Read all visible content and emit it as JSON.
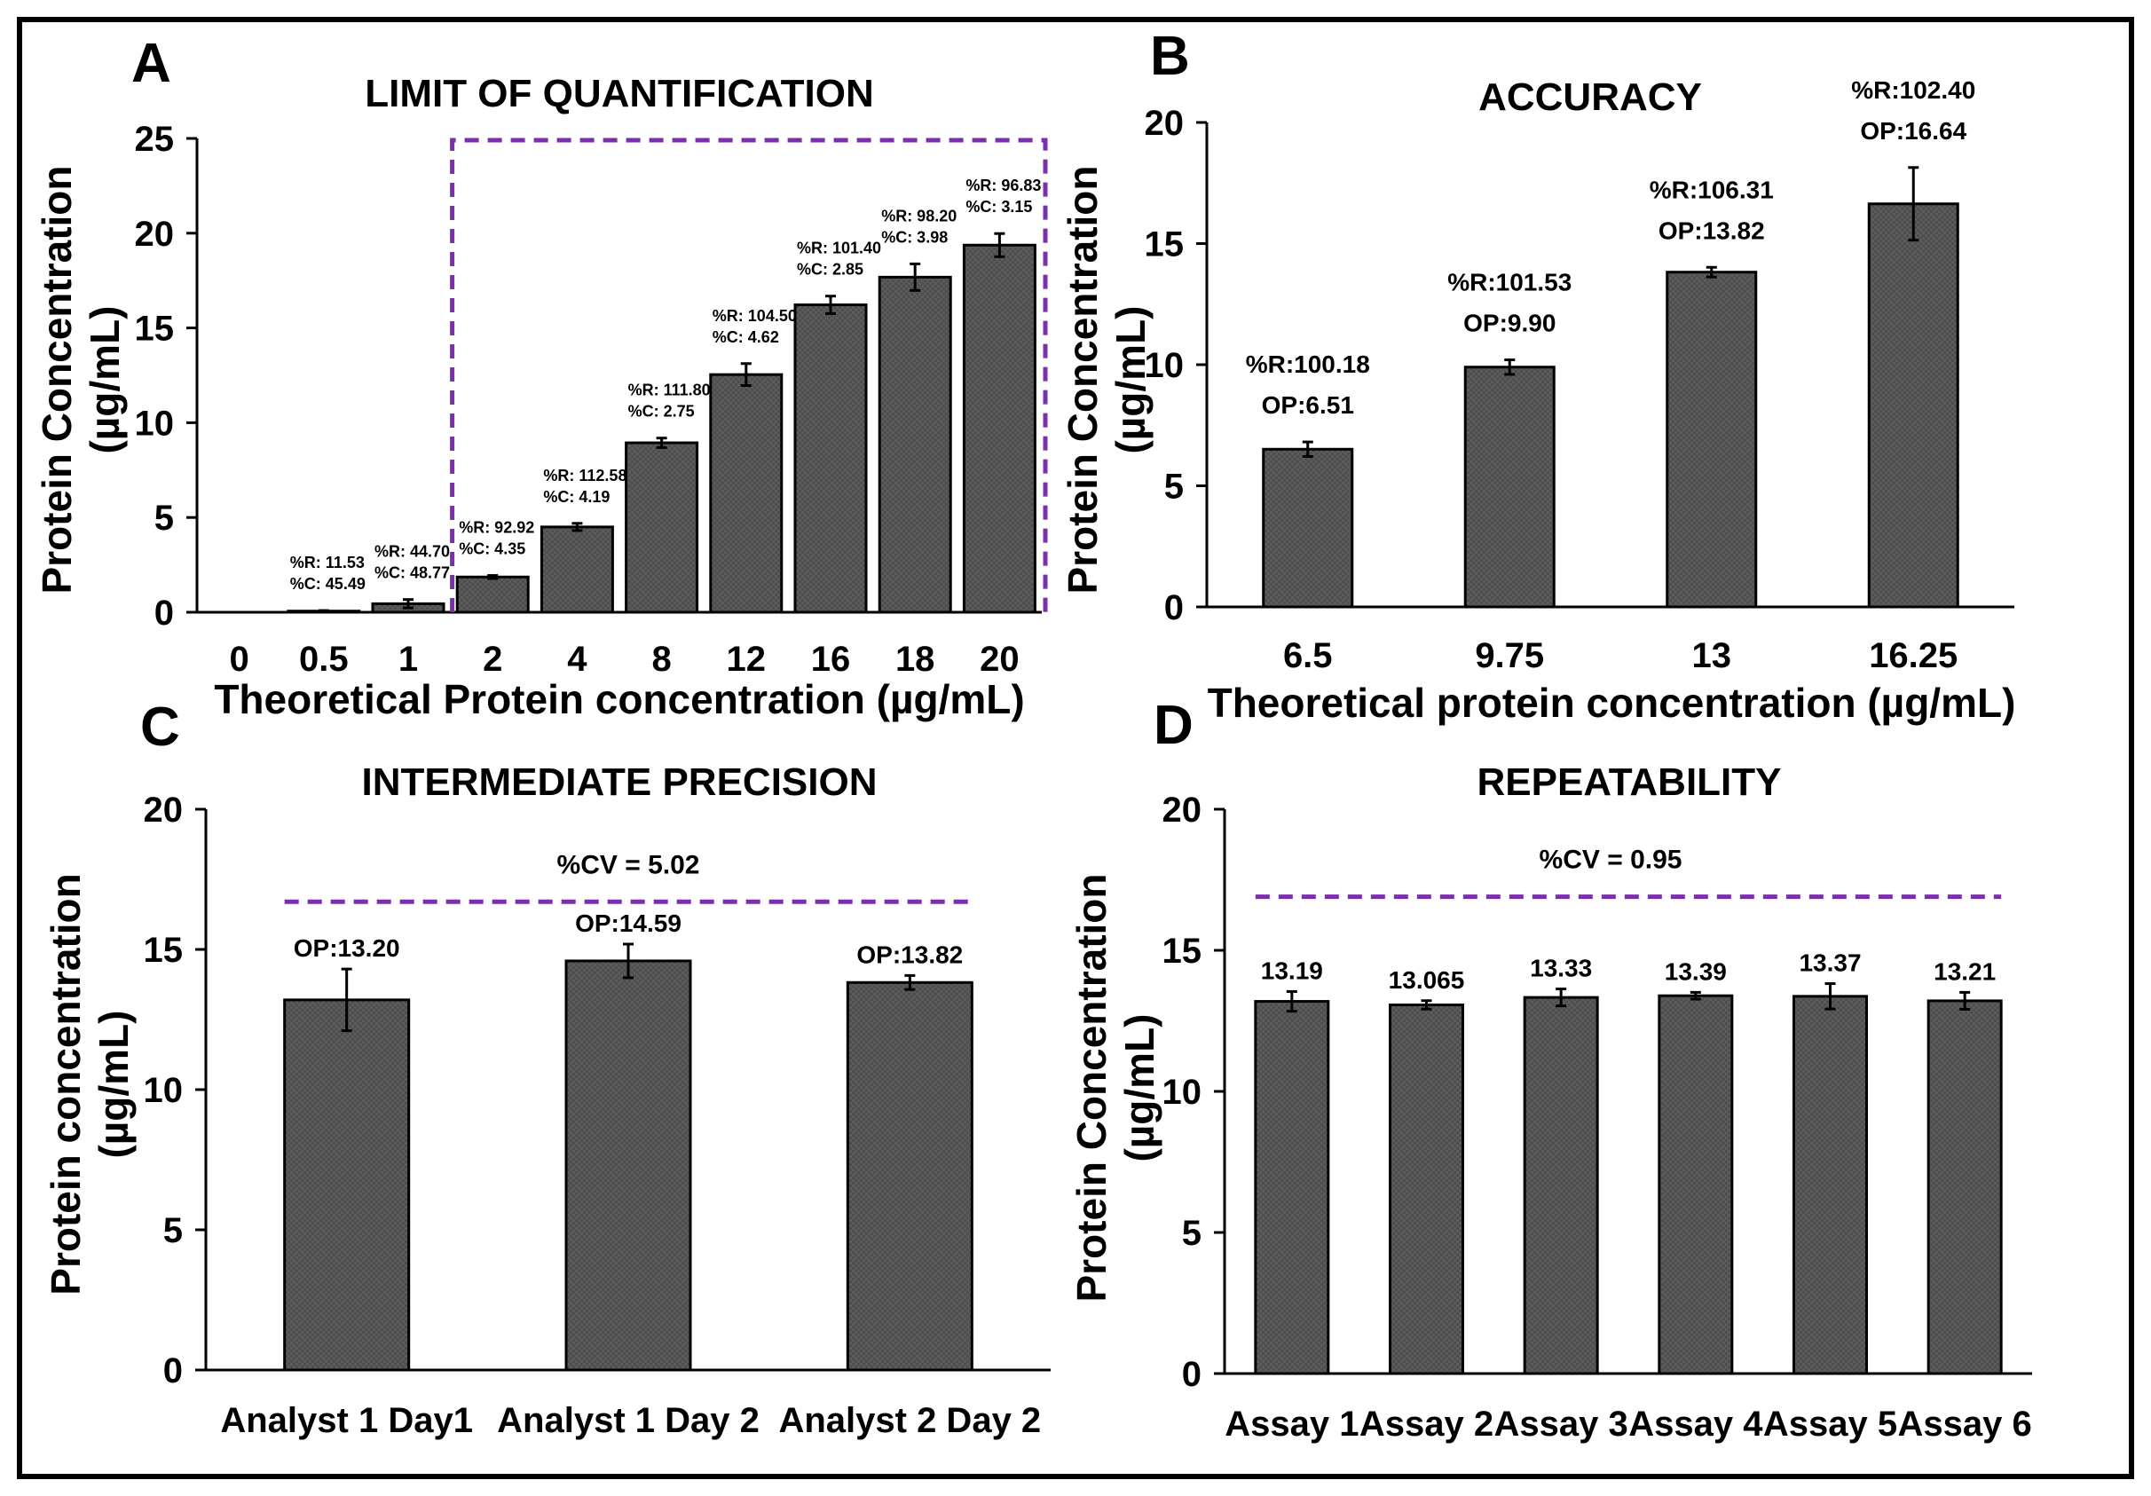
{
  "chart_data": [
    {
      "panel": "A",
      "type": "bar",
      "title": "LIMIT OF QUANTIFICATION",
      "xlabel": "Theoretical Protein concentration (µg/mL)",
      "ylabel_line1": "Protein Concentration",
      "ylabel_line2": "(µg/mL)",
      "ylim": [
        0,
        25
      ],
      "yticks": [
        0,
        5,
        10,
        15,
        20,
        25
      ],
      "categories": [
        "0",
        "0.5",
        "1",
        "2",
        "4",
        "8",
        "12",
        "16",
        "18",
        "20"
      ],
      "values": [
        0,
        0.06,
        0.45,
        1.86,
        4.5,
        8.94,
        12.54,
        16.22,
        17.68,
        19.37
      ],
      "errors": [
        0,
        0.03,
        0.22,
        0.08,
        0.19,
        0.25,
        0.58,
        0.46,
        0.7,
        0.61
      ],
      "annotations": [
        null,
        [
          "%R: 11.53",
          "%C: 45.49"
        ],
        [
          "%R: 44.70",
          "%C: 48.77"
        ],
        [
          "%R: 92.92",
          "%C: 4.35"
        ],
        [
          "%R: 112.58",
          "%C: 4.19"
        ],
        [
          "%R: 111.80",
          "%C: 2.75"
        ],
        [
          "%R: 104.50",
          "%C: 4.62"
        ],
        [
          "%R: 101.40",
          "%C: 2.85"
        ],
        [
          "%R: 98.20",
          "%C: 3.98"
        ],
        [
          "%R: 96.83",
          "%C: 3.15"
        ]
      ],
      "highlight_box": {
        "from_category": "2",
        "to_category": "20",
        "color": "#7a2fae"
      }
    },
    {
      "panel": "B",
      "type": "bar",
      "title": "ACCURACY",
      "xlabel": "Theoretical protein concentration (µg/mL)",
      "ylabel_line1": "Protein Concentration",
      "ylabel_line2": "(µg/mL)",
      "ylim": [
        0,
        20
      ],
      "yticks": [
        0,
        5,
        10,
        15,
        20
      ],
      "categories": [
        "6.5",
        "9.75",
        "13",
        "16.25"
      ],
      "values": [
        6.51,
        9.9,
        13.82,
        16.64
      ],
      "errors": [
        0.3,
        0.3,
        0.2,
        1.5
      ],
      "annotations": [
        [
          "%R:100.18",
          "OP:6.51"
        ],
        [
          "%R:101.53",
          "OP:9.90"
        ],
        [
          "%R:106.31",
          "OP:13.82"
        ],
        [
          "%R:102.40",
          "OP:16.64"
        ]
      ]
    },
    {
      "panel": "C",
      "type": "bar",
      "title": "INTERMEDIATE PRECISION",
      "xlabel": "",
      "ylabel_line1": "Protein concentration",
      "ylabel_line2": "(µg/mL)",
      "ylim": [
        0,
        20
      ],
      "yticks": [
        0,
        5,
        10,
        15,
        20
      ],
      "categories": [
        "Analyst 1 Day1",
        "Analyst 1 Day  2",
        "Analyst 2 Day 2"
      ],
      "values": [
        13.2,
        14.59,
        13.82
      ],
      "errors": [
        1.1,
        0.6,
        0.25
      ],
      "annotations": [
        [
          "OP:13.20"
        ],
        [
          "OP:14.59"
        ],
        [
          "OP:13.82"
        ]
      ],
      "cv_label": "%CV = 5.02",
      "cv_line_value": 16.7,
      "cv_color": "#7a2fae"
    },
    {
      "panel": "D",
      "type": "bar",
      "title": "REPEATABILITY",
      "xlabel": "",
      "ylabel_line1": "Protein Concentration",
      "ylabel_line2": "(µg/mL)",
      "ylim": [
        0,
        20
      ],
      "yticks": [
        0,
        5,
        10,
        15,
        20
      ],
      "categories": [
        "Assay 1",
        "Assay 2",
        "Assay 3",
        "Assay 4",
        "Assay 5",
        "Assay 6"
      ],
      "values": [
        13.19,
        13.065,
        13.33,
        13.39,
        13.37,
        13.21
      ],
      "errors": [
        0.35,
        0.15,
        0.3,
        0.12,
        0.45,
        0.3
      ],
      "annotations": [
        [
          "13.19"
        ],
        [
          "13.065"
        ],
        [
          "13.33"
        ],
        [
          "13.39"
        ],
        [
          "13.37"
        ],
        [
          "13.21"
        ]
      ],
      "cv_label": "%CV = 0.95",
      "cv_line_value": 16.9,
      "cv_color": "#7a2fae"
    }
  ]
}
